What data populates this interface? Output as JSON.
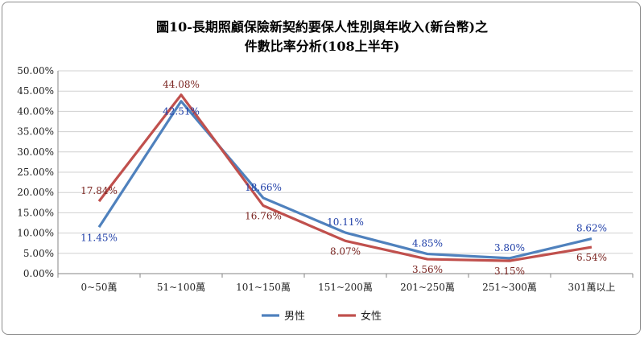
{
  "chart_data": {
    "type": "line",
    "title": "圖10-長期照顧保險新契約要保人性別與年收入(新台幣)之",
    "subtitle": "件數比率分析(108上半年)",
    "categories": [
      "0~50萬",
      "51~100萬",
      "101~150萬",
      "151~200萬",
      "201~250萬",
      "251~300萬",
      "301萬以上"
    ],
    "ylim": [
      0,
      50
    ],
    "yticks": [
      "0.00%",
      "5.00%",
      "10.00%",
      "15.00%",
      "20.00%",
      "25.00%",
      "30.00%",
      "35.00%",
      "40.00%",
      "45.00%",
      "50.00%"
    ],
    "grid": true,
    "legend": "bottom",
    "series": [
      {
        "name": "男性",
        "color": "#4f81bd",
        "label_color": "#1f3fa8",
        "values": [
          11.45,
          42.51,
          18.66,
          10.11,
          4.85,
          3.8,
          8.62
        ],
        "labels": [
          "11.45%",
          "42.51%",
          "18.66%",
          "10.11%",
          "4.85%",
          "3.80%",
          "8.62%"
        ]
      },
      {
        "name": "女性",
        "color": "#c0504d",
        "label_color": "#7a2420",
        "values": [
          17.84,
          44.08,
          16.76,
          8.07,
          3.56,
          3.15,
          6.54
        ],
        "labels": [
          "17.84%",
          "44.08%",
          "16.76%",
          "8.07%",
          "3.56%",
          "3.15%",
          "6.54%"
        ]
      }
    ]
  }
}
